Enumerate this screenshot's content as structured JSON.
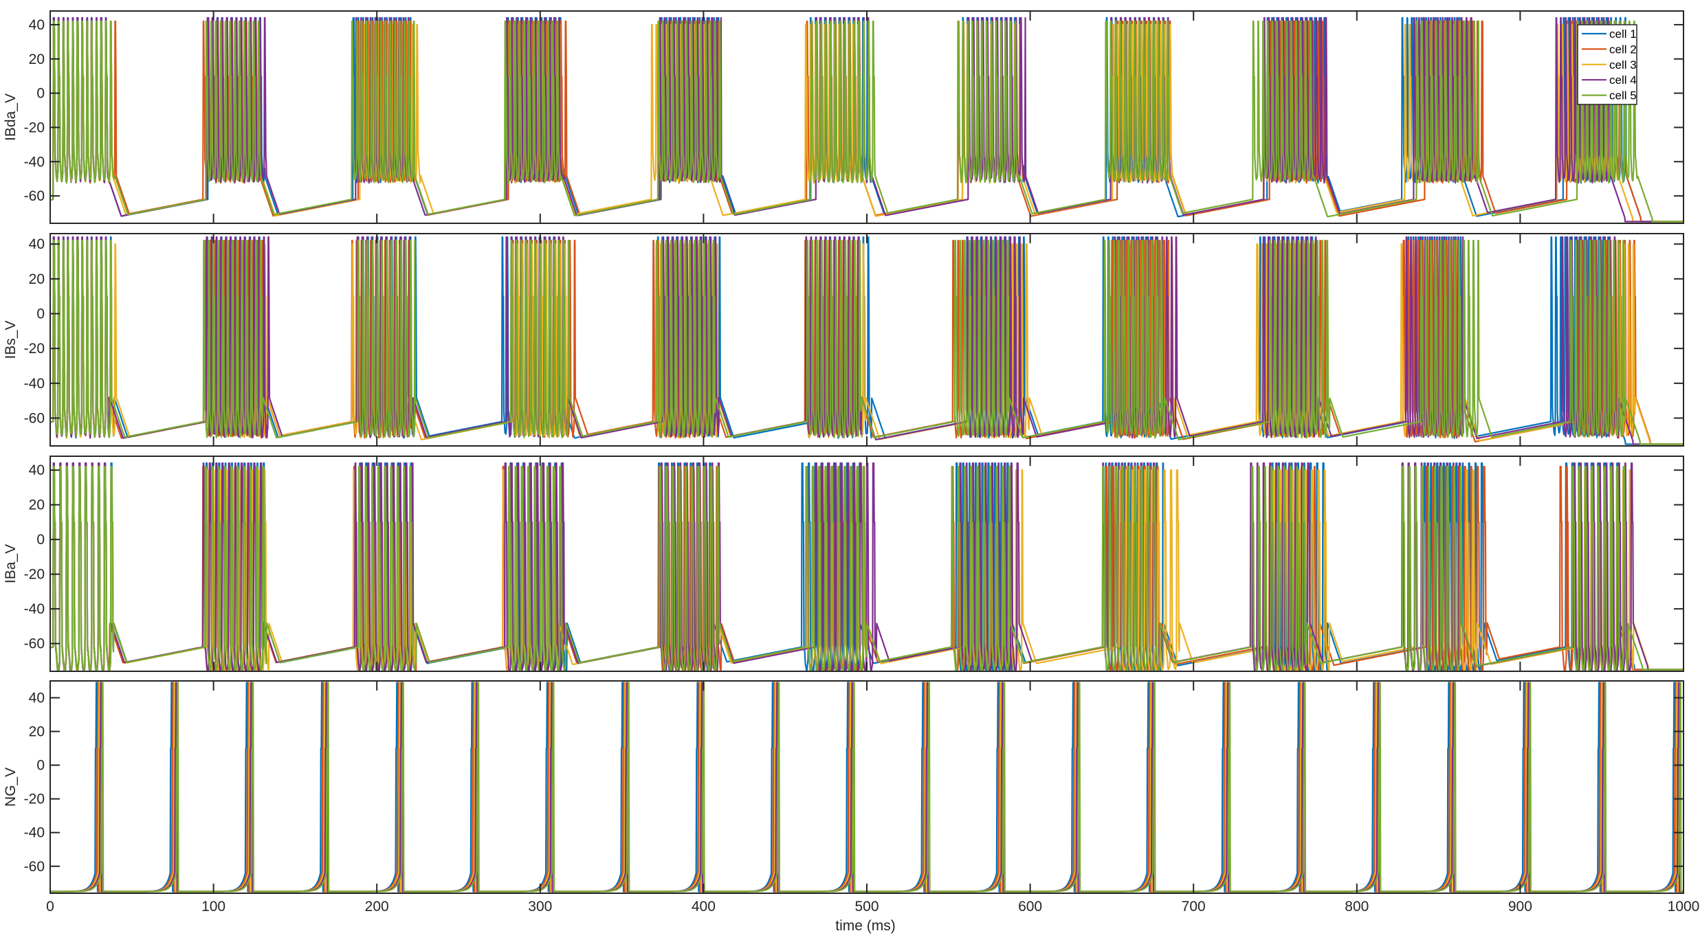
{
  "chart_data": [
    {
      "type": "line",
      "ylabel": "IBda_V",
      "xlim": [
        0,
        1000
      ],
      "ylim": [
        -76,
        48
      ],
      "yticks": [
        -60,
        -40,
        -20,
        0,
        20,
        40
      ],
      "model": "bursting",
      "show_legend": true,
      "burst_centers": [
        20,
        113,
        205,
        298,
        390,
        483,
        575,
        668,
        760,
        853,
        945
      ],
      "series": [
        {
          "name": "cell 1",
          "color": "#0072BD",
          "values": []
        },
        {
          "name": "cell 2",
          "color": "#D95319",
          "values": []
        },
        {
          "name": "cell 3",
          "color": "#EDB120",
          "values": []
        },
        {
          "name": "cell 4",
          "color": "#7E2F8E",
          "values": []
        },
        {
          "name": "cell 5",
          "color": "#77AC30",
          "values": []
        }
      ]
    },
    {
      "type": "line",
      "ylabel": "IBs_V",
      "xlim": [
        0,
        1000
      ],
      "ylim": [
        -76,
        46
      ],
      "yticks": [
        -60,
        -40,
        -20,
        0,
        20,
        40
      ],
      "model": "bursting",
      "show_legend": false,
      "burst_centers": [
        20,
        113,
        205,
        298,
        390,
        483,
        575,
        668,
        760,
        853,
        945
      ],
      "series": [
        {
          "name": "cell 1",
          "color": "#0072BD",
          "values": []
        },
        {
          "name": "cell 2",
          "color": "#D95319",
          "values": []
        },
        {
          "name": "cell 3",
          "color": "#EDB120",
          "values": []
        },
        {
          "name": "cell 4",
          "color": "#7E2F8E",
          "values": []
        },
        {
          "name": "cell 5",
          "color": "#77AC30",
          "values": []
        }
      ]
    },
    {
      "type": "line",
      "ylabel": "IBa_V",
      "xlim": [
        0,
        1000
      ],
      "ylim": [
        -76,
        48
      ],
      "yticks": [
        -60,
        -40,
        -20,
        0,
        20,
        40
      ],
      "model": "bursting",
      "show_legend": false,
      "burst_centers": [
        20,
        113,
        205,
        298,
        390,
        483,
        575,
        668,
        760,
        853,
        945
      ],
      "series": [
        {
          "name": "cell 1",
          "color": "#0072BD",
          "values": []
        },
        {
          "name": "cell 2",
          "color": "#D95319",
          "values": []
        },
        {
          "name": "cell 3",
          "color": "#EDB120",
          "values": []
        },
        {
          "name": "cell 4",
          "color": "#7E2F8E",
          "values": []
        },
        {
          "name": "cell 5",
          "color": "#77AC30",
          "values": []
        }
      ]
    },
    {
      "type": "line",
      "ylabel": "NG_V",
      "xlabel": "time (ms)",
      "xlim": [
        0,
        1000
      ],
      "ylim": [
        -76,
        50
      ],
      "yticks": [
        -60,
        -40,
        -20,
        0,
        20,
        40
      ],
      "xticks": [
        0,
        100,
        200,
        300,
        400,
        500,
        600,
        700,
        800,
        900,
        1000
      ],
      "model": "spiking",
      "show_legend": false,
      "spike_times": [
        30,
        76,
        122,
        168,
        214,
        260,
        306,
        352,
        398,
        444,
        490,
        536,
        582,
        628,
        674,
        720,
        766,
        812,
        858,
        904,
        950,
        996
      ],
      "series": [
        {
          "name": "cell 1",
          "color": "#0072BD",
          "values": []
        },
        {
          "name": "cell 2",
          "color": "#D95319",
          "values": []
        },
        {
          "name": "cell 3",
          "color": "#EDB120",
          "values": []
        },
        {
          "name": "cell 4",
          "color": "#7E2F8E",
          "values": []
        },
        {
          "name": "cell 5",
          "color": "#77AC30",
          "values": []
        }
      ]
    }
  ]
}
